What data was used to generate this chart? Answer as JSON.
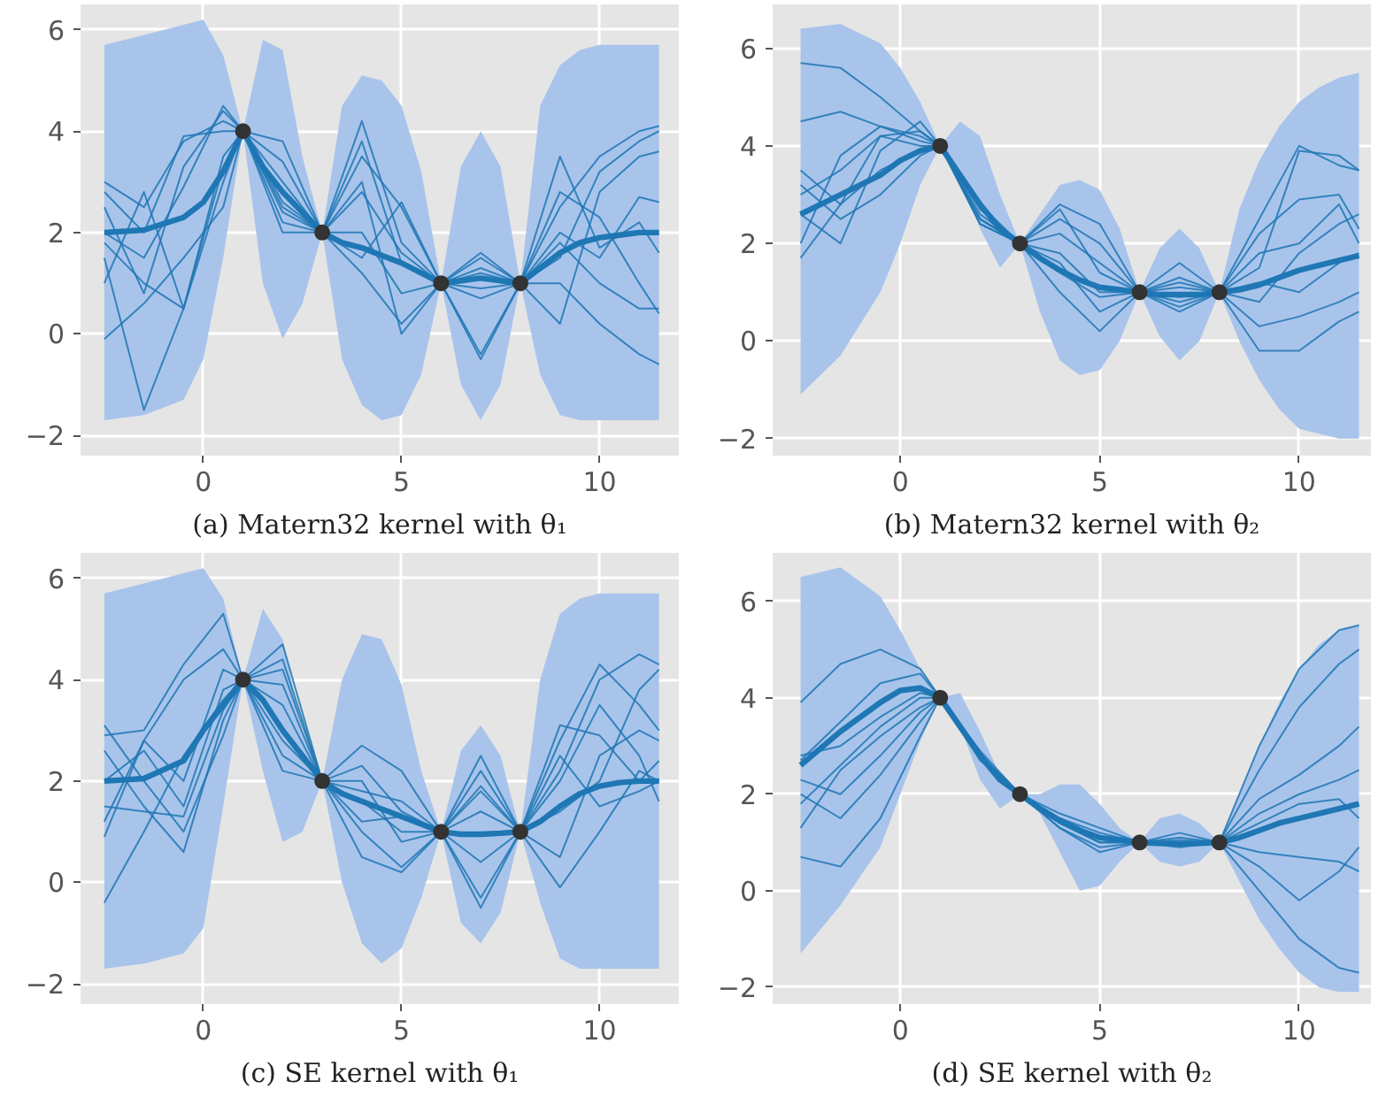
{
  "chart_data": [
    {
      "type": "line",
      "title": "(a) Matern32 kernel with θ₁",
      "xlim": [
        -3.1,
        12.0
      ],
      "ylim": [
        -2.4,
        6.5
      ],
      "xticks": [
        0,
        5,
        10
      ],
      "yticks": [
        -2,
        0,
        2,
        4,
        6
      ],
      "grid": true,
      "x": [
        -2.5,
        -1.5,
        -0.5,
        0,
        0.5,
        1,
        1.5,
        2,
        2.5,
        3,
        3.5,
        4,
        4.5,
        5,
        5.5,
        6,
        6.5,
        7,
        7.5,
        8,
        8.5,
        9,
        9.5,
        10,
        10.5,
        11,
        11.5
      ],
      "series": [
        {
          "type": "line",
          "color": "#1f77b4",
          "values": [
            2,
            2.05,
            2.3,
            2.6,
            3.2,
            4,
            3.3,
            2.8,
            2.4,
            2,
            1.8,
            1.7,
            1.55,
            1.4,
            1.2,
            1,
            1.05,
            1.1,
            1.05,
            1,
            1.3,
            1.6,
            1.8,
            1.9,
            1.95,
            2,
            2
          ],
          "lower": [
            -1.7,
            -1.6,
            -1.3,
            -0.5,
            1.5,
            4,
            1.0,
            -0.1,
            0.6,
            2,
            -0.5,
            -1.4,
            -1.7,
            -1.6,
            -0.8,
            1,
            -1.0,
            -1.7,
            -1.0,
            1,
            -0.8,
            -1.6,
            -1.7,
            -1.7,
            -1.7,
            -1.7,
            -1.7
          ],
          "upper": [
            5.7,
            5.9,
            6.1,
            6.2,
            5.5,
            4,
            5.8,
            5.6,
            3.5,
            2,
            4.5,
            5.1,
            5.0,
            4.5,
            3.2,
            1,
            3.3,
            4.0,
            3.3,
            1,
            4.5,
            5.3,
            5.6,
            5.7,
            5.7,
            5.7,
            5.7
          ]
        },
        {
          "type": "line",
          "color": "#1f77b4",
          "x": [
            -2.5,
            -1.5,
            -0.5,
            0.5,
            1,
            2,
            3,
            4,
            5,
            6,
            7,
            8,
            9,
            10,
            11,
            11.5
          ],
          "values": [
            3.0,
            2.5,
            3.8,
            4.2,
            4,
            2.5,
            2,
            3.5,
            2.5,
            1,
            1.5,
            1,
            2.5,
            3.5,
            4.0,
            4.1
          ]
        },
        {
          "type": "line",
          "color": "#1f77b4",
          "x": [
            -2.5,
            -1.5,
            -0.5,
            0.5,
            1,
            2,
            3,
            4,
            5,
            6,
            7,
            8,
            9,
            10,
            11,
            11.5
          ],
          "values": [
            2.5,
            0.8,
            3.3,
            4.4,
            4,
            3.0,
            2,
            1.2,
            0.2,
            1,
            -0.5,
            1,
            1.8,
            1.0,
            0.5,
            0.5
          ]
        },
        {
          "type": "line",
          "color": "#1f77b4",
          "x": [
            -2.5,
            -1.5,
            -0.5,
            0.5,
            1,
            2,
            3,
            4,
            5,
            6,
            7,
            8,
            9,
            10,
            11,
            11.5
          ],
          "values": [
            1.5,
            -1.5,
            0.5,
            3.0,
            4,
            2.2,
            2,
            2.8,
            1.6,
            1,
            1.2,
            1,
            0.2,
            2.8,
            3.5,
            3.6
          ]
        },
        {
          "type": "line",
          "color": "#1f77b4",
          "x": [
            -2.5,
            -1.5,
            -0.5,
            0.5,
            1,
            2,
            3,
            4,
            5,
            6,
            7,
            8,
            9,
            10,
            11,
            11.5
          ],
          "values": [
            1.0,
            2.8,
            0.5,
            3.5,
            4,
            3.4,
            2,
            2.0,
            0.8,
            1,
            0.7,
            1,
            2.8,
            2.3,
            1.0,
            0.4
          ]
        },
        {
          "type": "line",
          "color": "#1f77b4",
          "x": [
            -2.5,
            -1.5,
            -0.5,
            0.5,
            1,
            2,
            3,
            4,
            5,
            6,
            7,
            8,
            9,
            10,
            11,
            11.5
          ],
          "values": [
            2.0,
            1.5,
            2.9,
            4.5,
            4,
            2.0,
            2,
            4.2,
            1.8,
            1,
            1.6,
            1,
            1.0,
            0.2,
            -0.4,
            -0.6
          ]
        },
        {
          "type": "line",
          "color": "#1f77b4",
          "x": [
            -2.5,
            -1.5,
            -0.5,
            0.5,
            1,
            2,
            3,
            4,
            5,
            6,
            7,
            8,
            9,
            10,
            11,
            11.5
          ],
          "values": [
            -0.1,
            0.6,
            1.5,
            2.5,
            4,
            2.6,
            2,
            3.0,
            0.0,
            1,
            -0.4,
            1,
            2.0,
            1.5,
            2.7,
            2.6
          ]
        },
        {
          "type": "line",
          "color": "#1f77b4",
          "x": [
            -2.5,
            -1.5,
            -0.5,
            0.5,
            1,
            2,
            3,
            4,
            5,
            6,
            7,
            8,
            9,
            10,
            11,
            11.5
          ],
          "values": [
            2.8,
            2.0,
            3.9,
            4.0,
            4,
            3.8,
            2,
            1.5,
            2.6,
            1,
            1.3,
            1,
            3.5,
            1.7,
            2.2,
            1.6
          ]
        },
        {
          "type": "line",
          "color": "#1f77b4",
          "x": [
            -2.5,
            -1.5,
            -0.5,
            0.5,
            1,
            2,
            3,
            4,
            5,
            6,
            7,
            8,
            9,
            10,
            11,
            11.5
          ],
          "values": [
            1.8,
            1.0,
            0.5,
            3.3,
            4,
            2.4,
            2,
            3.8,
            1.4,
            1,
            0.9,
            1,
            1.5,
            3.2,
            3.8,
            4.0
          ]
        },
        {
          "type": "scatter",
          "color": "#333333",
          "marker": "circle",
          "x": [
            1,
            3,
            6,
            8
          ],
          "values": [
            4,
            2,
            1,
            1
          ]
        }
      ]
    },
    {
      "type": "line",
      "title": "(b) Matern32 kernel with θ₂",
      "xlim": [
        -3.2,
        11.8
      ],
      "ylim": [
        -2.35,
        6.9
      ],
      "xticks": [
        0,
        5,
        10
      ],
      "yticks": [
        -2,
        0,
        2,
        4,
        6
      ],
      "grid": true,
      "x": [
        -2.5,
        -1.5,
        -0.5,
        0,
        0.5,
        1,
        1.5,
        2,
        2.5,
        3,
        3.5,
        4,
        4.5,
        5,
        5.5,
        6,
        6.5,
        7,
        7.5,
        8,
        8.5,
        9,
        9.5,
        10,
        10.5,
        11,
        11.5
      ],
      "series": [
        {
          "type": "line",
          "color": "#1f77b4",
          "values": [
            2.6,
            3.0,
            3.4,
            3.7,
            3.9,
            4,
            3.4,
            2.8,
            2.3,
            2,
            1.7,
            1.45,
            1.25,
            1.1,
            1.05,
            1,
            0.95,
            0.95,
            0.95,
            1,
            1.05,
            1.15,
            1.3,
            1.45,
            1.55,
            1.65,
            1.75
          ],
          "lower": [
            -1.1,
            -0.3,
            1.0,
            2.0,
            3.2,
            4,
            3.3,
            2.3,
            1.5,
            2,
            0.6,
            -0.4,
            -0.7,
            -0.6,
            0.0,
            1,
            0.1,
            -0.4,
            0.0,
            1,
            0.0,
            -0.8,
            -1.4,
            -1.8,
            -1.9,
            -2.0,
            -2.0
          ],
          "upper": [
            6.4,
            6.5,
            6.1,
            5.6,
            4.9,
            4,
            4.5,
            4.2,
            3.0,
            2,
            2.6,
            3.2,
            3.3,
            3.1,
            2.3,
            1,
            1.9,
            2.3,
            1.9,
            1,
            2.7,
            3.7,
            4.4,
            4.9,
            5.2,
            5.4,
            5.5
          ]
        },
        {
          "type": "line",
          "color": "#1f77b4",
          "x": [
            -2.5,
            -1.5,
            -0.5,
            0.5,
            1,
            2,
            3,
            4,
            5,
            6,
            7,
            8,
            9,
            10,
            11,
            11.5
          ],
          "values": [
            5.7,
            5.6,
            5.0,
            4.3,
            4,
            2.8,
            2,
            2.5,
            2.0,
            1,
            1.2,
            1,
            2.5,
            4.0,
            3.6,
            3.5
          ]
        },
        {
          "type": "line",
          "color": "#1f77b4",
          "x": [
            -2.5,
            -1.5,
            -0.5,
            0.5,
            1,
            2,
            3,
            4,
            5,
            6,
            7,
            8,
            9,
            10,
            11,
            11.5
          ],
          "values": [
            4.5,
            4.7,
            4.4,
            4.2,
            4,
            2.5,
            2,
            2.7,
            1.4,
            1,
            1.6,
            1,
            1.5,
            3.9,
            3.8,
            3.5
          ]
        },
        {
          "type": "line",
          "color": "#1f77b4",
          "x": [
            -2.5,
            -1.5,
            -0.5,
            0.5,
            1,
            2,
            3,
            4,
            5,
            6,
            7,
            8,
            9,
            10,
            11,
            11.5
          ],
          "values": [
            3.5,
            2.8,
            4.2,
            4.3,
            4,
            2.4,
            2,
            1.8,
            1.0,
            1,
            0.9,
            1,
            0.3,
            0.5,
            0.8,
            1.0
          ]
        },
        {
          "type": "line",
          "color": "#1f77b4",
          "x": [
            -2.5,
            -1.5,
            -0.5,
            0.5,
            1,
            2,
            3,
            4,
            5,
            6,
            7,
            8,
            9,
            10,
            11,
            11.5
          ],
          "values": [
            2.0,
            3.8,
            4.4,
            4.1,
            4,
            2.5,
            2,
            1.0,
            0.2,
            1,
            0.6,
            1,
            0.8,
            1.8,
            2.4,
            2.6
          ]
        },
        {
          "type": "line",
          "color": "#1f77b4",
          "x": [
            -2.5,
            -1.5,
            -0.5,
            0.5,
            1,
            2,
            3,
            4,
            5,
            6,
            7,
            8,
            9,
            10,
            11,
            11.5
          ],
          "values": [
            1.7,
            2.8,
            3.5,
            3.9,
            4,
            2.7,
            2,
            2.2,
            1.6,
            1,
            1.3,
            1,
            1.8,
            2.0,
            2.8,
            2.0
          ]
        },
        {
          "type": "line",
          "color": "#1f77b4",
          "x": [
            -2.5,
            -1.5,
            -0.5,
            0.5,
            1,
            2,
            3,
            4,
            5,
            6,
            7,
            8,
            9,
            10,
            11,
            11.5
          ],
          "values": [
            3.2,
            2.5,
            3.0,
            3.8,
            4,
            2.4,
            2,
            1.4,
            0.9,
            1,
            0.7,
            1,
            -0.2,
            -0.2,
            0.4,
            0.6
          ]
        },
        {
          "type": "line",
          "color": "#1f77b4",
          "x": [
            -2.5,
            -1.5,
            -0.5,
            0.5,
            1,
            2,
            3,
            4,
            5,
            6,
            7,
            8,
            9,
            10,
            11,
            11.5
          ],
          "values": [
            3.0,
            3.5,
            4.2,
            4.0,
            4,
            2.6,
            2,
            2.8,
            2.4,
            1,
            1.1,
            1,
            1.2,
            1.0,
            1.6,
            1.8
          ]
        },
        {
          "type": "line",
          "color": "#1f77b4",
          "x": [
            -2.5,
            -1.5,
            -0.5,
            0.5,
            1,
            2,
            3,
            4,
            5,
            6,
            7,
            8,
            9,
            10,
            11,
            11.5
          ],
          "values": [
            2.6,
            2.0,
            3.9,
            4.5,
            4,
            2.5,
            2,
            1.6,
            0.6,
            1,
            0.8,
            1,
            2.2,
            2.9,
            3.0,
            2.3
          ]
        },
        {
          "type": "scatter",
          "color": "#333333",
          "marker": "circle",
          "x": [
            1,
            3,
            6,
            8
          ],
          "values": [
            4,
            2,
            1,
            1
          ]
        }
      ]
    },
    {
      "type": "line",
      "title": "(c) SE kernel with θ₁",
      "xlim": [
        -3.1,
        12.0
      ],
      "ylim": [
        -2.4,
        6.5
      ],
      "xticks": [
        0,
        5,
        10
      ],
      "yticks": [
        -2,
        0,
        2,
        4,
        6
      ],
      "grid": true,
      "x": [
        -2.5,
        -1.5,
        -0.5,
        0,
        0.5,
        1,
        1.5,
        2,
        2.5,
        3,
        3.5,
        4,
        4.5,
        5,
        5.5,
        6,
        6.5,
        7,
        7.5,
        8,
        8.5,
        9,
        9.5,
        10,
        10.5,
        11,
        11.5
      ],
      "series": [
        {
          "type": "line",
          "color": "#1f77b4",
          "values": [
            2,
            2.05,
            2.4,
            3.0,
            3.5,
            4,
            3.6,
            3.0,
            2.5,
            2,
            1.75,
            1.6,
            1.45,
            1.3,
            1.15,
            1,
            0.95,
            0.95,
            0.97,
            1,
            1.2,
            1.5,
            1.75,
            1.9,
            1.97,
            2,
            2
          ],
          "lower": [
            -1.7,
            -1.6,
            -1.4,
            -0.9,
            1.5,
            4,
            2.2,
            0.8,
            1.0,
            2,
            0.0,
            -1.2,
            -1.6,
            -1.3,
            -0.3,
            1,
            -0.8,
            -1.2,
            -0.6,
            1,
            -0.4,
            -1.5,
            -1.7,
            -1.7,
            -1.7,
            -1.7,
            -1.7
          ],
          "upper": [
            5.7,
            5.9,
            6.1,
            6.2,
            5.6,
            4,
            5.4,
            4.8,
            3.0,
            2,
            4.0,
            4.9,
            4.8,
            3.9,
            2.2,
            1,
            2.6,
            3.1,
            2.5,
            1,
            4.0,
            5.3,
            5.6,
            5.7,
            5.7,
            5.7,
            5.7
          ]
        },
        {
          "type": "line",
          "color": "#1f77b4",
          "x": [
            -2.5,
            -1.5,
            -0.5,
            0.5,
            1,
            2,
            3,
            4,
            5,
            6,
            7,
            8,
            9,
            10,
            11,
            11.5
          ],
          "values": [
            2.9,
            3.0,
            4.3,
            5.3,
            4,
            2.5,
            2,
            1.6,
            1.0,
            1,
            0.4,
            1,
            2.8,
            4.3,
            3.5,
            3.0
          ]
        },
        {
          "type": "line",
          "color": "#1f77b4",
          "x": [
            -2.5,
            -1.5,
            -0.5,
            0.5,
            1,
            2,
            3,
            4,
            5,
            6,
            7,
            8,
            9,
            10,
            11,
            11.5
          ],
          "values": [
            0.9,
            2.8,
            4.0,
            4.6,
            4,
            4.7,
            2,
            1.2,
            1.3,
            1,
            1.8,
            1,
            2.2,
            4.0,
            4.5,
            4.3
          ]
        },
        {
          "type": "line",
          "color": "#1f77b4",
          "x": [
            -2.5,
            -1.5,
            -0.5,
            0.5,
            1,
            2,
            3,
            4,
            5,
            6,
            7,
            8,
            9,
            10,
            11,
            11.5
          ],
          "values": [
            -0.4,
            1.0,
            2.5,
            3.6,
            4,
            2.2,
            2,
            2.3,
            1.4,
            1,
            -0.3,
            1,
            0.5,
            2.5,
            3.0,
            2.8
          ]
        },
        {
          "type": "line",
          "color": "#1f77b4",
          "x": [
            -2.5,
            -1.5,
            -0.5,
            0.5,
            1,
            2,
            3,
            4,
            5,
            6,
            7,
            8,
            9,
            10,
            11,
            11.5
          ],
          "values": [
            1.5,
            1.4,
            1.3,
            3.4,
            4,
            3.5,
            2,
            1.0,
            0.3,
            1,
            2.5,
            1,
            -0.1,
            1.0,
            2.2,
            2.0
          ]
        },
        {
          "type": "line",
          "color": "#1f77b4",
          "x": [
            -2.5,
            -1.5,
            -0.5,
            0.5,
            1,
            2,
            3,
            4,
            5,
            6,
            7,
            8,
            9,
            10,
            11,
            11.5
          ],
          "values": [
            3.1,
            2.0,
            1.0,
            2.9,
            4,
            4.2,
            2,
            2.7,
            2.2,
            1,
            1.4,
            1,
            2.0,
            3.5,
            2.5,
            1.6
          ]
        },
        {
          "type": "line",
          "color": "#1f77b4",
          "x": [
            -2.5,
            -1.5,
            -0.5,
            0.5,
            1,
            2,
            3,
            4,
            5,
            6,
            7,
            8,
            9,
            10,
            11,
            11.5
          ],
          "values": [
            2.6,
            1.5,
            0.6,
            3.2,
            4,
            3.9,
            2,
            2.0,
            0.8,
            1,
            -0.5,
            1,
            3.1,
            2.9,
            2.0,
            2.4
          ]
        },
        {
          "type": "line",
          "color": "#1f77b4",
          "x": [
            -2.5,
            -1.5,
            -0.5,
            0.5,
            1,
            2,
            3,
            4,
            5,
            6,
            7,
            8,
            9,
            10,
            11,
            11.5
          ],
          "values": [
            1.2,
            2.8,
            2.0,
            4.2,
            4,
            2.8,
            2,
            0.5,
            0.2,
            1,
            1.9,
            1,
            1.4,
            2.0,
            3.8,
            4.2
          ]
        },
        {
          "type": "line",
          "color": "#1f77b4",
          "x": [
            -2.5,
            -1.5,
            -0.5,
            0.5,
            1,
            2,
            3,
            4,
            5,
            6,
            7,
            8,
            9,
            10,
            11,
            11.5
          ],
          "values": [
            2.0,
            2.6,
            1.5,
            3.8,
            4,
            4.4,
            2,
            1.8,
            1.6,
            1,
            2.2,
            1,
            2.5,
            1.5,
            1.8,
            2.0
          ]
        },
        {
          "type": "scatter",
          "color": "#333333",
          "marker": "circle",
          "x": [
            1,
            3,
            6,
            8
          ],
          "values": [
            4,
            2,
            1,
            1
          ]
        }
      ]
    },
    {
      "type": "line",
      "title": "(d) SE kernel with θ₂",
      "xlim": [
        -3.2,
        11.8
      ],
      "ylim": [
        -2.35,
        7.0
      ],
      "xticks": [
        0,
        5,
        10
      ],
      "yticks": [
        -2,
        0,
        2,
        4,
        6
      ],
      "grid": true,
      "x": [
        -2.5,
        -1.5,
        -0.5,
        0,
        0.5,
        1,
        1.5,
        2,
        2.5,
        3,
        3.5,
        4,
        4.5,
        5,
        5.5,
        6,
        6.5,
        7,
        7.5,
        8,
        8.5,
        9,
        9.5,
        10,
        10.5,
        11,
        11.5
      ],
      "series": [
        {
          "type": "line",
          "color": "#1f77b4",
          "values": [
            2.6,
            3.3,
            3.9,
            4.15,
            4.2,
            4,
            3.4,
            2.8,
            2.3,
            2,
            1.7,
            1.45,
            1.25,
            1.1,
            1.05,
            1,
            0.98,
            0.97,
            0.98,
            1,
            1.1,
            1.25,
            1.4,
            1.5,
            1.6,
            1.7,
            1.8
          ],
          "lower": [
            -1.3,
            -0.3,
            0.9,
            2.0,
            3.1,
            4,
            3.4,
            2.3,
            1.7,
            2,
            1.6,
            0.8,
            0.0,
            0.1,
            0.6,
            1,
            0.6,
            0.5,
            0.6,
            1,
            0.2,
            -0.6,
            -1.2,
            -1.7,
            -2.0,
            -2.1,
            -2.1
          ],
          "upper": [
            6.5,
            6.7,
            6.1,
            5.4,
            4.6,
            4,
            4.1,
            3.3,
            2.4,
            2,
            2.0,
            2.2,
            2.2,
            1.8,
            1.3,
            1,
            1.5,
            1.6,
            1.4,
            1,
            2.0,
            3.0,
            3.9,
            4.6,
            5.1,
            5.4,
            5.5
          ]
        },
        {
          "type": "line",
          "color": "#1f77b4",
          "x": [
            -2.5,
            -1.5,
            -0.5,
            0.5,
            1,
            2,
            3,
            4,
            5,
            6,
            7,
            8,
            9,
            10,
            11,
            11.5
          ],
          "values": [
            3.9,
            4.7,
            5.0,
            4.6,
            4,
            2.8,
            2,
            1.4,
            1.1,
            1,
            1.0,
            1,
            3.0,
            4.6,
            5.4,
            5.5
          ]
        },
        {
          "type": "line",
          "color": "#1f77b4",
          "x": [
            -2.5,
            -1.5,
            -0.5,
            0.5,
            1,
            2,
            3,
            4,
            5,
            6,
            7,
            8,
            9,
            10,
            11,
            11.5
          ],
          "values": [
            2.7,
            3.5,
            4.3,
            4.5,
            4,
            2.8,
            2,
            1.5,
            1.2,
            1,
            1.1,
            1,
            2.5,
            3.8,
            4.7,
            5.0
          ]
        },
        {
          "type": "line",
          "color": "#1f77b4",
          "x": [
            -2.5,
            -1.5,
            -0.5,
            0.5,
            1,
            2,
            3,
            4,
            5,
            6,
            7,
            8,
            9,
            10,
            11,
            11.5
          ],
          "values": [
            0.7,
            0.5,
            1.5,
            3.2,
            4,
            2.9,
            2,
            1.3,
            0.9,
            1,
            0.9,
            1,
            1.9,
            2.4,
            3.0,
            3.4
          ]
        },
        {
          "type": "line",
          "color": "#1f77b4",
          "x": [
            -2.5,
            -1.5,
            -0.5,
            0.5,
            1,
            2,
            3,
            4,
            5,
            6,
            7,
            8,
            9,
            10,
            11,
            11.5
          ],
          "values": [
            1.3,
            2.5,
            3.2,
            3.8,
            4,
            2.7,
            2,
            1.6,
            1.3,
            1,
            1.2,
            1,
            1.6,
            2.0,
            2.3,
            2.5
          ]
        },
        {
          "type": "line",
          "color": "#1f77b4",
          "x": [
            -2.5,
            -1.5,
            -0.5,
            0.5,
            1,
            2,
            3,
            4,
            5,
            6,
            7,
            8,
            9,
            10,
            11,
            11.5
          ],
          "values": [
            2.0,
            1.5,
            2.4,
            3.5,
            4,
            2.8,
            2,
            1.4,
            1.0,
            1,
            0.95,
            1,
            1.4,
            1.8,
            1.9,
            1.5
          ]
        },
        {
          "type": "line",
          "color": "#1f77b4",
          "x": [
            -2.5,
            -1.5,
            -0.5,
            0.5,
            1,
            2,
            3,
            4,
            5,
            6,
            7,
            8,
            9,
            10,
            11,
            11.5
          ],
          "values": [
            2.3,
            2.0,
            2.8,
            3.7,
            4,
            2.8,
            2,
            1.5,
            1.1,
            1,
            1.0,
            1,
            0.8,
            0.7,
            0.6,
            0.4
          ]
        },
        {
          "type": "line",
          "color": "#1f77b4",
          "x": [
            -2.5,
            -1.5,
            -0.5,
            0.5,
            1,
            2,
            3,
            4,
            5,
            6,
            7,
            8,
            9,
            10,
            11,
            11.5
          ],
          "values": [
            1.8,
            2.6,
            3.4,
            4.0,
            4,
            2.8,
            2,
            1.3,
            0.8,
            1,
            1.05,
            1,
            0.5,
            -0.2,
            0.4,
            0.9
          ]
        },
        {
          "type": "line",
          "color": "#1f77b4",
          "x": [
            -2.5,
            -1.5,
            -0.5,
            0.5,
            1,
            2,
            3,
            4,
            5,
            6,
            7,
            8,
            9,
            10,
            11,
            11.5
          ],
          "values": [
            2.8,
            3.0,
            3.6,
            4.1,
            4,
            2.8,
            2,
            1.4,
            1.0,
            1,
            1.0,
            1,
            0.0,
            -1.0,
            -1.6,
            -1.7
          ]
        },
        {
          "type": "scatter",
          "color": "#333333",
          "marker": "circle",
          "x": [
            1,
            3,
            6,
            8
          ],
          "values": [
            4,
            2,
            1,
            1
          ]
        }
      ]
    }
  ]
}
